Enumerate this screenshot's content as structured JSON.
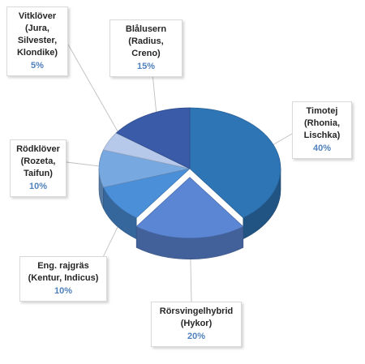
{
  "chart_data": {
    "type": "pie",
    "title": "",
    "slices": [
      {
        "label": "Timotej\n(Rhonia,\nLischka)",
        "value": 40,
        "percent_label": "40%",
        "color": "#2e75b6"
      },
      {
        "label": "Rörsvingelhybrid\n(Hykor)",
        "value": 20,
        "percent_label": "20%",
        "color": "#5b86d4"
      },
      {
        "label": "Eng. rajgräs\n(Kentur, Indicus)",
        "value": 10,
        "percent_label": "10%",
        "color": "#4a8fd8"
      },
      {
        "label": "Rödklöver\n(Rozeta,\nTaifun)",
        "value": 10,
        "percent_label": "10%",
        "color": "#77a8df"
      },
      {
        "label": "Vitklöver\n(Jura,\nSilvester,\nKlondike)",
        "value": 5,
        "percent_label": "5%",
        "color": "#b7c9ea"
      },
      {
        "label": "Blålusern\n(Radius, Creno)",
        "value": 15,
        "percent_label": "15%",
        "color": "#3a5ba8"
      }
    ],
    "legend": "none",
    "data_labels": "callouts"
  }
}
